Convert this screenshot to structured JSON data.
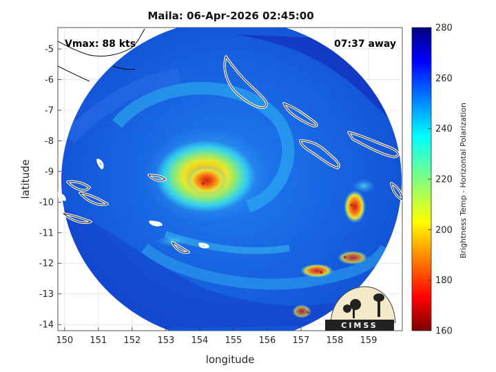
{
  "chart_data": {
    "type": "heatmap",
    "title": "Maila: 06-Apr-2026 02:45:00",
    "xlabel": "longitude",
    "ylabel": "latitude",
    "xlim": [
      149.8,
      160.0
    ],
    "ylim": [
      -14.2,
      -4.3
    ],
    "xticks": [
      150,
      151,
      152,
      153,
      154,
      155,
      156,
      157,
      158,
      159
    ],
    "yticks": [
      -5,
      -6,
      -7,
      -8,
      -9,
      -10,
      -11,
      -12,
      -13,
      -14
    ],
    "annotations": {
      "vmax": "Vmax: 88 kts",
      "time_away": "07:37 away"
    },
    "colorbar": {
      "label": "Brightness Temp - Horizontal Polarization",
      "min": 160,
      "max": 280,
      "ticks": [
        280,
        260,
        240,
        220,
        200,
        180,
        160
      ],
      "colormap": "jet"
    },
    "storm_center": {
      "lon": 154.1,
      "lat": -9.4
    },
    "min_brightness_temp_approx": 185,
    "warm_core_features": [
      {
        "lon": 154.1,
        "lat": -9.4,
        "value": 188
      },
      {
        "lon": 158.5,
        "lat": -10.1,
        "value": 192
      },
      {
        "lon": 157.6,
        "lat": -12.3,
        "value": 200
      },
      {
        "lon": 158.3,
        "lat": -11.8,
        "value": 215
      },
      {
        "lon": 157.2,
        "lat": -13.6,
        "value": 225
      }
    ],
    "logo": "CIMSS"
  }
}
